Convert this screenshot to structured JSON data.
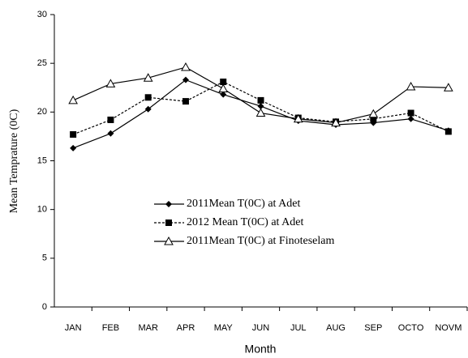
{
  "chart_data": {
    "type": "line",
    "x_label": "Month",
    "y_label": "Mean Temprature  (0C)",
    "categories": [
      "JAN",
      "FEB",
      "MAR",
      "APR",
      "MAY",
      "JUN",
      "JUL",
      "AUG",
      "SEP",
      "OCTO",
      "NOVM"
    ],
    "series": [
      {
        "name": "2011Mean T(0C) at Adet",
        "color": "#000000",
        "marker": "diamond",
        "dash": false,
        "values": [
          16.3,
          17.8,
          20.3,
          23.3,
          21.8,
          20.6,
          19.1,
          18.7,
          18.9,
          19.3,
          18.1
        ]
      },
      {
        "name": "2012 Mean T(0C) at Adet",
        "color": "#000000",
        "marker": "square",
        "dash": true,
        "values": [
          17.7,
          19.2,
          21.5,
          21.1,
          23.1,
          21.2,
          19.4,
          19.0,
          19.3,
          19.9,
          18.0
        ]
      },
      {
        "name": "2011Mean T(0C) at Finoteselam",
        "color": "#000000",
        "marker": "triangle",
        "dash": false,
        "values": [
          21.2,
          22.9,
          23.5,
          24.6,
          22.4,
          19.9,
          19.3,
          18.9,
          19.8,
          22.6,
          22.5
        ]
      }
    ],
    "ylim": [
      0,
      30
    ],
    "yticks": [
      0,
      5,
      10,
      15,
      20,
      25,
      30
    ],
    "grid": false
  }
}
